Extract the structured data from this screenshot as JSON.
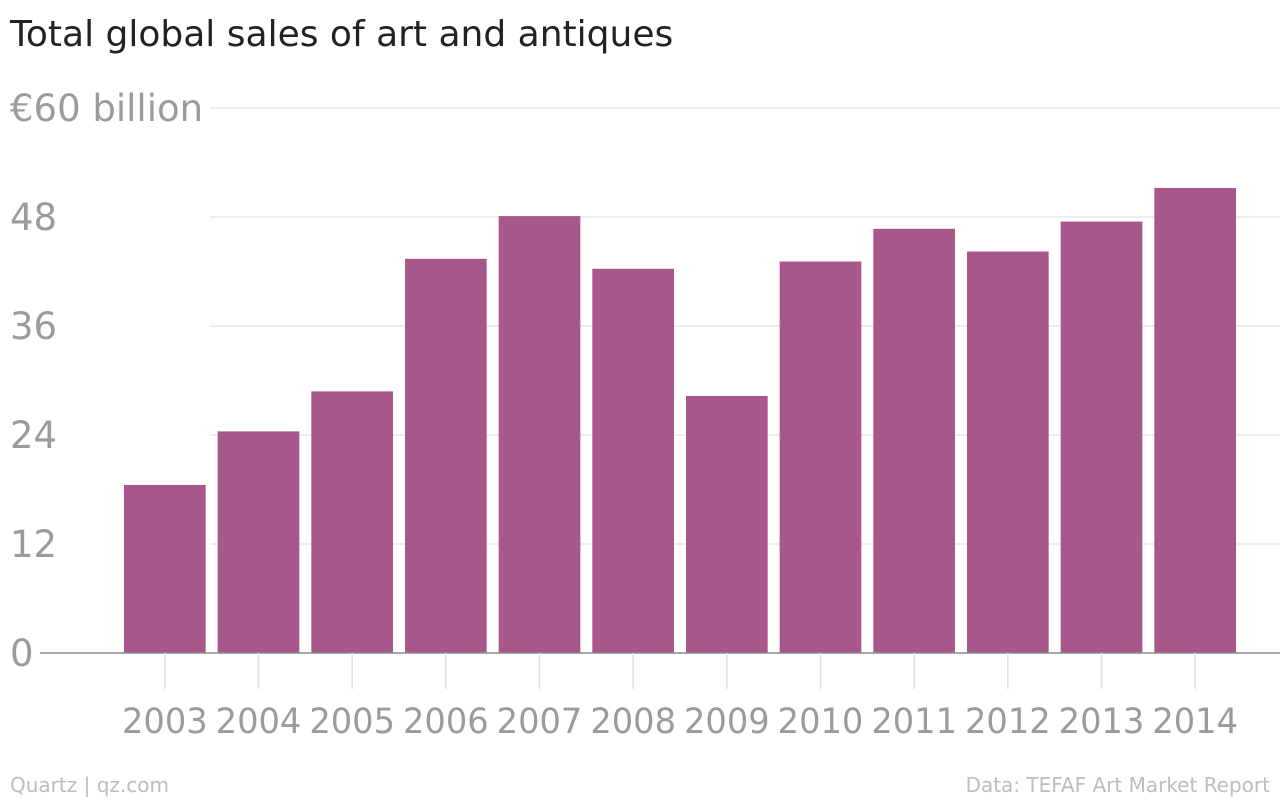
{
  "header": {
    "title": "Total global sales of art and antiques"
  },
  "footer": {
    "credit": "Quartz | qz.com",
    "source": "Data: TEFAF Art Market Report"
  },
  "chart_data": {
    "type": "bar",
    "title": "Total global sales of art and antiques",
    "categories": [
      "2003",
      "2004",
      "2005",
      "2006",
      "2007",
      "2008",
      "2009",
      "2010",
      "2011",
      "2012",
      "2013",
      "2014"
    ],
    "values": [
      18.5,
      24.4,
      28.8,
      43.4,
      48.1,
      42.3,
      28.3,
      43.1,
      46.7,
      44.2,
      47.5,
      51.2
    ],
    "ylim": [
      0,
      60
    ],
    "yticks": [
      0,
      12,
      24,
      36,
      48,
      60
    ],
    "ytick_labels": [
      "0",
      "12",
      "24",
      "36",
      "48",
      "€60 billion"
    ],
    "grid": true,
    "bar_color": "#a8578a",
    "axis_label_color": "#9b9b9b",
    "gridline_color": "#e8e8e8"
  }
}
